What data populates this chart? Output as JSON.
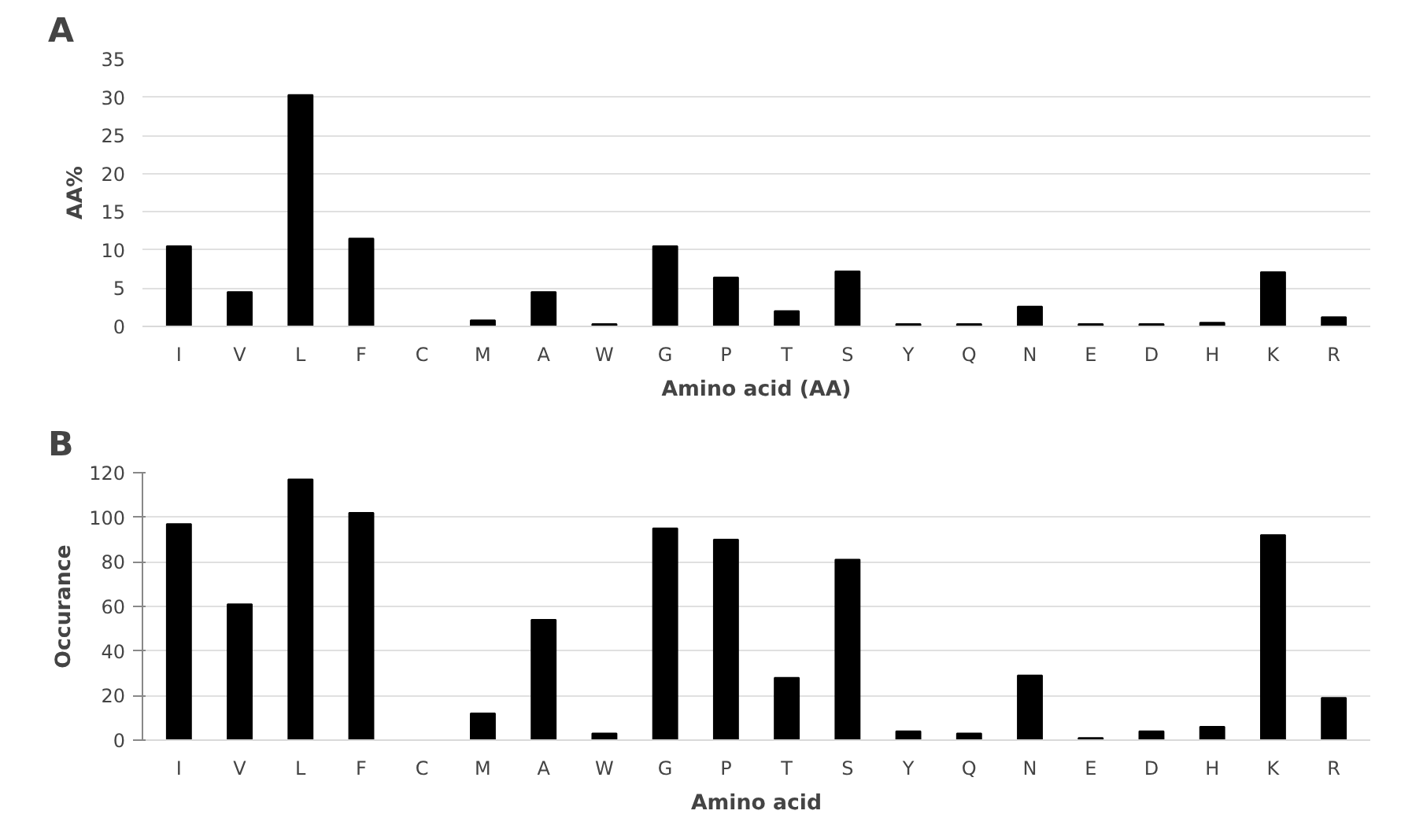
{
  "chart_data": [
    {
      "type": "bar",
      "title": "A",
      "xlabel": "Amino acid (AA)",
      "ylabel": "AA%",
      "categories": [
        "I",
        "V",
        "L",
        "F",
        "C",
        "M",
        "A",
        "W",
        "G",
        "P",
        "T",
        "S",
        "Y",
        "Q",
        "N",
        "E",
        "D",
        "H",
        "K",
        "R"
      ],
      "series": [
        {
          "color": "#000000",
          "values": [
            10.5,
            4.5,
            30.3,
            11.5,
            0,
            0.8,
            4.5,
            0.3,
            10.5,
            6.4,
            2.0,
            7.2,
            0.3,
            0.3,
            2.6,
            0.3,
            0.3,
            0.5,
            7.1,
            1.2
          ]
        }
      ],
      "ylim": [
        0,
        35
      ],
      "yticks": [
        0,
        5,
        10,
        15,
        20,
        25,
        30,
        35
      ],
      "grid": "y"
    },
    {
      "type": "bar",
      "title": "B",
      "xlabel": "Amino acid",
      "ylabel": "Occurance",
      "categories": [
        "I",
        "V",
        "L",
        "F",
        "C",
        "M",
        "A",
        "W",
        "G",
        "P",
        "T",
        "S",
        "Y",
        "Q",
        "N",
        "E",
        "D",
        "H",
        "K",
        "R"
      ],
      "series": [
        {
          "color": "#000000",
          "values": [
            97,
            61,
            117,
            102,
            0,
            12,
            54,
            3,
            95,
            90,
            28,
            81,
            4,
            3,
            29,
            1,
            4,
            6,
            92,
            19
          ]
        }
      ],
      "ylim": [
        0,
        120
      ],
      "yticks": [
        0,
        20,
        40,
        60,
        80,
        100,
        120
      ],
      "grid": "y"
    }
  ]
}
